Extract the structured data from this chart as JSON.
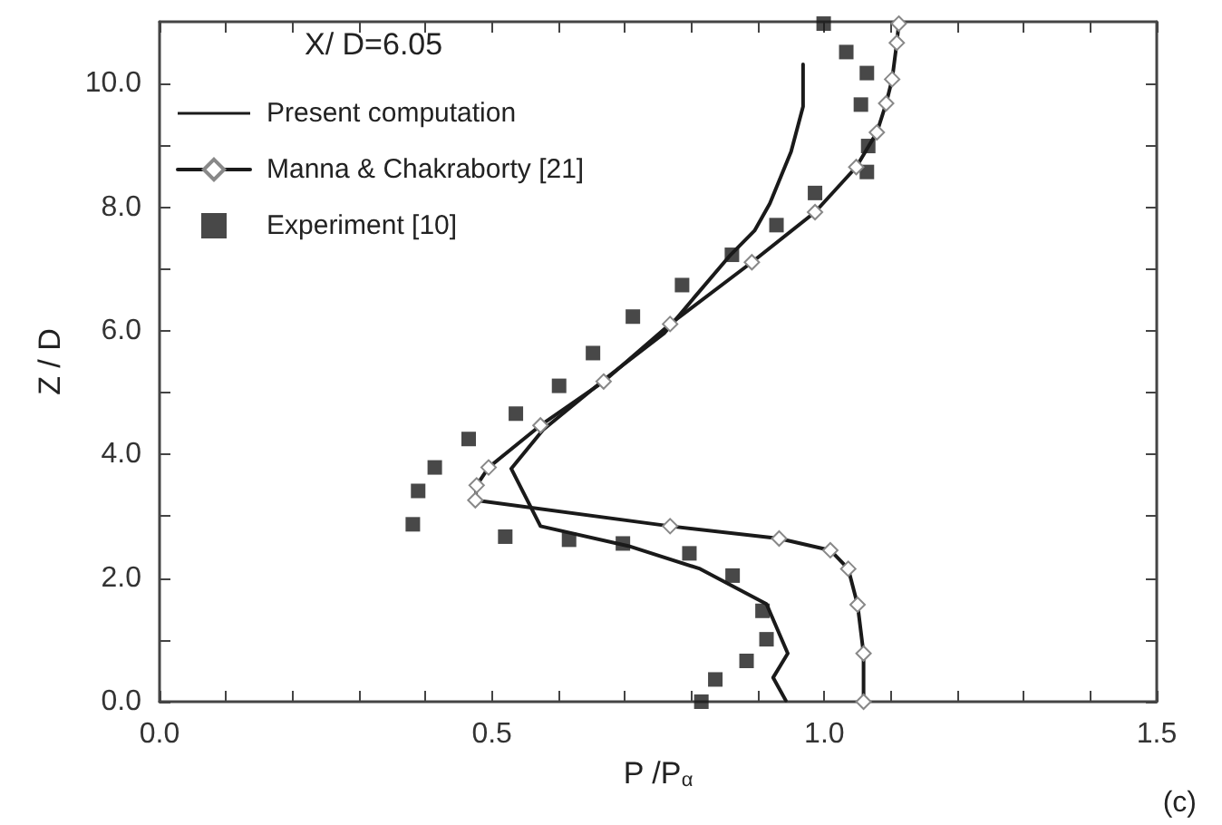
{
  "chart_data": {
    "type": "line",
    "xlabel": "P /P$_{α}$",
    "ylabel": "Z / D",
    "legend_title": "X/ D=6.05",
    "legend": "top left",
    "annotations": [
      "(c)"
    ],
    "xlim": [
      0,
      1.5
    ],
    "ylim": [
      0,
      11
    ],
    "xticks": [
      {
        "value": 0,
        "label": "0.0"
      },
      {
        "value": 0.1,
        "label": null
      },
      {
        "value": 0.2,
        "label": null
      },
      {
        "value": 0.3,
        "label": null
      },
      {
        "value": 0.4,
        "label": null
      },
      {
        "value": 0.5,
        "label": "0.5"
      },
      {
        "value": 0.6,
        "label": null
      },
      {
        "value": 0.7,
        "label": null
      },
      {
        "value": 0.8,
        "label": null
      },
      {
        "value": 0.9,
        "label": null
      },
      {
        "value": 1,
        "label": "1.0"
      },
      {
        "value": 1.1,
        "label": null
      },
      {
        "value": 1.2,
        "label": null
      },
      {
        "value": 1.3,
        "label": null
      },
      {
        "value": 1.4,
        "label": null
      },
      {
        "value": 1.5,
        "label": "1.5"
      }
    ],
    "yticks": [
      {
        "value": 0,
        "label": "0.0"
      },
      {
        "value": 1,
        "label": null
      },
      {
        "value": 2,
        "label": "2.0"
      },
      {
        "value": 3,
        "label": null
      },
      {
        "value": 4,
        "label": "4.0"
      },
      {
        "value": 5,
        "label": null
      },
      {
        "value": 6,
        "label": "6.0"
      },
      {
        "value": 7,
        "label": null
      },
      {
        "value": 8,
        "label": "8.0"
      },
      {
        "value": 9,
        "label": null
      },
      {
        "value": 10,
        "label": "10.0"
      }
    ],
    "series": [
      {
        "name": "Present computation",
        "color": "#1a1a1a",
        "marker": "none",
        "x": [
          0.968,
          0.968,
          0.95,
          0.918,
          0.895,
          0.859,
          0.813,
          0.759,
          0.677,
          0.577,
          0.529,
          0.573,
          0.705,
          0.813,
          0.913,
          0.945,
          0.923,
          0.942
        ],
        "values": [
          10.31,
          9.63,
          8.9,
          8.06,
          7.62,
          7.23,
          6.65,
          5.96,
          5.28,
          4.4,
          3.77,
          2.84,
          2.52,
          2.15,
          1.58,
          0.78,
          0.39,
          0.02
        ]
      },
      {
        "name": "Manna & Chakraborty [21]",
        "color": "#1a1a1a",
        "marker": "diamond",
        "x": [
          1.112,
          1.109,
          1.102,
          1.093,
          1.079,
          1.048,
          0.986,
          0.891,
          0.768,
          0.668,
          0.573,
          0.495,
          0.477,
          0.475,
          0.768,
          0.932,
          1.009,
          1.036,
          1.05,
          1.059,
          1.059
        ],
        "values": [
          10.97,
          10.66,
          10.07,
          9.68,
          9.21,
          8.65,
          7.92,
          7.11,
          6.11,
          5.18,
          4.47,
          3.79,
          3.5,
          3.26,
          2.84,
          2.64,
          2.45,
          2.15,
          1.57,
          0.78,
          0
        ]
      },
      {
        "name": "Experiment [10]",
        "type": "scatter",
        "color": "#1a1a1a",
        "marker": "square",
        "x": [
          0.815,
          0.836,
          0.883,
          0.913,
          0.907,
          0.862,
          0.797,
          0.697,
          0.616,
          0.52,
          0.381,
          0.389,
          0.414,
          0.465,
          0.536,
          0.601,
          0.652,
          0.712,
          0.786,
          0.861,
          0.928,
          0.986,
          1.064,
          1.066,
          1.055,
          1.064,
          1.033,
          0.999
        ],
        "values": [
          0,
          0.36,
          0.66,
          1.01,
          1.47,
          2.04,
          2.4,
          2.56,
          2.62,
          2.67,
          2.87,
          3.41,
          3.79,
          4.25,
          4.66,
          5.11,
          5.64,
          6.23,
          6.74,
          7.23,
          7.71,
          8.23,
          8.57,
          8.99,
          9.66,
          10.17,
          10.51,
          10.97
        ]
      }
    ]
  }
}
